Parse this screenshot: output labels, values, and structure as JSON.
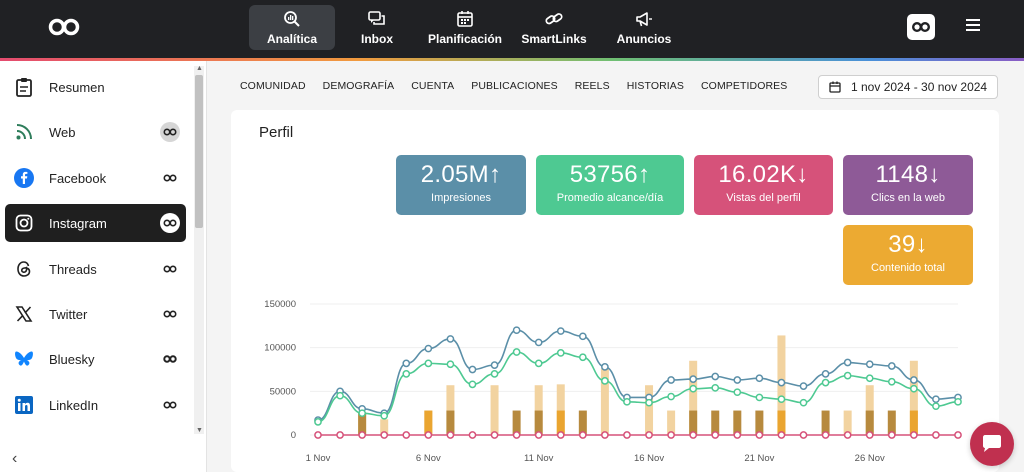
{
  "topnav": {
    "items": [
      {
        "label": "Analítica",
        "icon": "analytics-icon",
        "active": true
      },
      {
        "label": "Inbox",
        "icon": "chat-bubbles-icon"
      },
      {
        "label": "Planificación",
        "icon": "calendar-icon"
      },
      {
        "label": "SmartLinks",
        "icon": "link-icon"
      },
      {
        "label": "Anuncios",
        "icon": "megaphone-icon"
      }
    ]
  },
  "sidebar": {
    "items": [
      {
        "label": "Resumen",
        "icon": "clipboard-icon"
      },
      {
        "label": "Web",
        "icon": "rss-icon"
      },
      {
        "label": "Facebook",
        "icon": "facebook-icon"
      },
      {
        "label": "Instagram",
        "icon": "instagram-icon",
        "active": true
      },
      {
        "label": "Threads",
        "icon": "threads-icon"
      },
      {
        "label": "Twitter",
        "icon": "x-icon"
      },
      {
        "label": "Bluesky",
        "icon": "bluesky-icon"
      },
      {
        "label": "LinkedIn",
        "icon": "linkedin-icon"
      }
    ],
    "collapse_label": "‹"
  },
  "tabs": [
    "COMUNIDAD",
    "DEMOGRAFÍA",
    "CUENTA",
    "PUBLICACIONES",
    "REELS",
    "HISTORIAS",
    "COMPETIDORES"
  ],
  "date_range": "1 nov 2024 - 30 nov 2024",
  "section_title": "Perfil",
  "kpis": [
    {
      "value": "2.05M",
      "arrow": "↑",
      "label": "Impresiones",
      "color": "#5b8fa8"
    },
    {
      "value": "53756",
      "arrow": "↑",
      "label": "Promedio alcance/día",
      "color": "#4ec992"
    },
    {
      "value": "16.02K",
      "arrow": "↓",
      "label": "Vistas del perfil",
      "color": "#d6527a"
    },
    {
      "value": "1148",
      "arrow": "↓",
      "label": "Clics en la web",
      "color": "#8e5a97"
    },
    {
      "value": "39",
      "arrow": "↓",
      "label": "Contenido total",
      "color": "#ecaa32"
    }
  ],
  "chart_data": {
    "type": "line",
    "title": "",
    "xlabel": "",
    "ylabel": "",
    "ylim": [
      0,
      150000
    ],
    "yticks": [
      "0",
      "50000",
      "100000",
      "150000"
    ],
    "x": [
      1,
      2,
      3,
      4,
      5,
      6,
      7,
      8,
      9,
      10,
      11,
      12,
      13,
      14,
      15,
      16,
      17,
      18,
      19,
      20,
      21,
      22,
      23,
      24,
      25,
      26,
      27,
      28,
      29,
      30
    ],
    "xtick_labels": [
      {
        "x": 1,
        "label": "1 Nov"
      },
      {
        "x": 6,
        "label": "6 Nov"
      },
      {
        "x": 11,
        "label": "11 Nov"
      },
      {
        "x": 16,
        "label": "16 Nov"
      },
      {
        "x": 21,
        "label": "21 Nov"
      },
      {
        "x": 26,
        "label": "26 Nov"
      }
    ],
    "series": [
      {
        "type": "line",
        "color": "#5b8fa8",
        "values": [
          17000,
          50000,
          30000,
          25000,
          82000,
          99000,
          110000,
          75000,
          80000,
          120000,
          106000,
          119000,
          113000,
          78000,
          43000,
          43000,
          63000,
          64000,
          67000,
          63000,
          65000,
          60000,
          56000,
          70000,
          83000,
          81000,
          79000,
          63000,
          41000,
          43000
        ]
      },
      {
        "type": "line",
        "color": "#4ec992",
        "values": [
          15000,
          45000,
          25000,
          22000,
          70000,
          82000,
          81000,
          58000,
          70000,
          95000,
          82000,
          94000,
          89000,
          62000,
          38000,
          37000,
          44000,
          53000,
          54000,
          49000,
          43000,
          41000,
          37000,
          60000,
          68000,
          65000,
          61000,
          53000,
          33000,
          38000
        ]
      },
      {
        "type": "line",
        "color": "#d6527a",
        "values": [
          0,
          0,
          0,
          0,
          0,
          0,
          0,
          0,
          0,
          0,
          0,
          0,
          0,
          0,
          0,
          0,
          0,
          0,
          0,
          0,
          0,
          0,
          0,
          0,
          0,
          0,
          0,
          0,
          0,
          0
        ]
      },
      {
        "type": "bar",
        "color": "#f2d3a0",
        "values": [
          0,
          0,
          26000,
          18000,
          0,
          28000,
          57000,
          0,
          57000,
          0,
          57000,
          58000,
          0,
          76000,
          0,
          57000,
          28000,
          85000,
          0,
          0,
          0,
          114000,
          0,
          0,
          28000,
          57000,
          0,
          85000,
          0,
          0
        ]
      },
      {
        "type": "bar",
        "color": "#b78a3e",
        "values": [
          0,
          0,
          26000,
          0,
          0,
          0,
          28000,
          0,
          0,
          28000,
          28000,
          0,
          28000,
          0,
          0,
          0,
          0,
          28000,
          28000,
          28000,
          28000,
          0,
          0,
          28000,
          0,
          28000,
          28000,
          0,
          0,
          0
        ]
      },
      {
        "type": "bar",
        "color": "#eaa530",
        "values": [
          0,
          0,
          0,
          0,
          0,
          28000,
          0,
          0,
          0,
          0,
          0,
          28000,
          0,
          0,
          0,
          0,
          0,
          0,
          0,
          0,
          0,
          28000,
          0,
          0,
          0,
          0,
          0,
          28000,
          0,
          0
        ]
      }
    ]
  }
}
